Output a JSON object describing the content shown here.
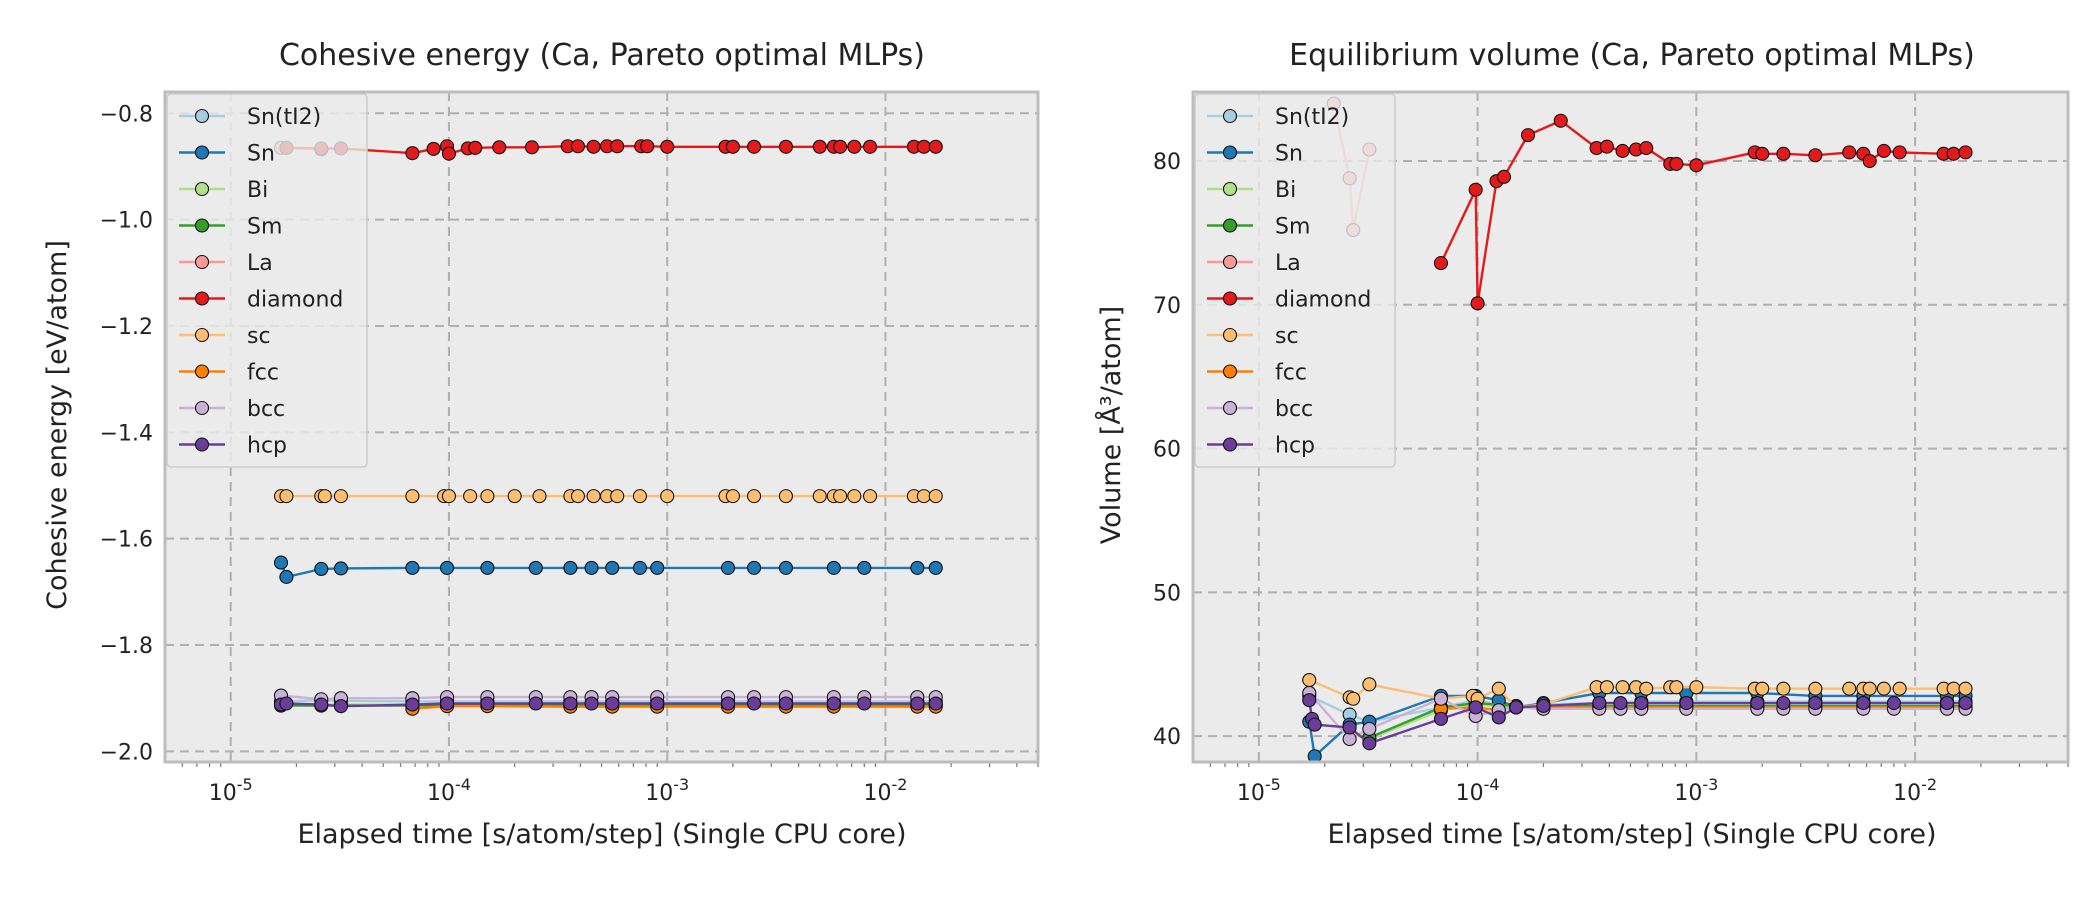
{
  "chart_data": [
    {
      "type": "line",
      "title": "Cohesive energy (Ca, Pareto optimal MLPs)",
      "xlabel": "Elapsed time [s/atom/step] (Single CPU core)",
      "ylabel": "Cohesive energy [eV/atom]",
      "xscale": "log",
      "xlim": [
        5e-06,
        0.05
      ],
      "ylim": [
        -2.02,
        -0.76
      ],
      "xticks": [
        {
          "value": 1e-05,
          "base": "10",
          "exp": "-5"
        },
        {
          "value": 0.0001,
          "base": "10",
          "exp": "-4"
        },
        {
          "value": 0.001,
          "base": "10",
          "exp": "-3"
        },
        {
          "value": 0.01,
          "base": "10",
          "exp": "-2"
        }
      ],
      "yticks": [
        {
          "value": -0.8,
          "label": "−0.8"
        },
        {
          "value": -1.0,
          "label": "−1.0"
        },
        {
          "value": -1.2,
          "label": "−1.2"
        },
        {
          "value": -1.4,
          "label": "−1.4"
        },
        {
          "value": -1.6,
          "label": "−1.6"
        },
        {
          "value": -1.8,
          "label": "−1.8"
        },
        {
          "value": -2.0,
          "label": "−2.0"
        }
      ],
      "grid": true,
      "legend_position": "top-left",
      "series": [
        {
          "name": "Sn(tI2)",
          "color": "#a6cee3",
          "x": [
            1.7e-05,
            2.6e-05,
            3.2e-05,
            6.8e-05,
            9.8e-05,
            0.00015,
            0.00036,
            0.00056,
            0.0009,
            0.0019,
            0.0035,
            0.0058,
            0.014,
            0.017
          ],
          "y": [
            -1.906,
            -1.904,
            -1.905,
            -1.906,
            -1.906,
            -1.906,
            -1.906,
            -1.906,
            -1.906,
            -1.906,
            -1.906,
            -1.906,
            -1.906,
            -1.906
          ]
        },
        {
          "name": "Sn",
          "color": "#1f78b4",
          "x": [
            1.7e-05,
            1.8e-05,
            2.6e-05,
            3.2e-05,
            6.8e-05,
            9.8e-05,
            0.00015,
            0.00025,
            0.00036,
            0.00045,
            0.00056,
            0.00075,
            0.0009,
            0.0019,
            0.0025,
            0.0035,
            0.0058,
            0.008,
            0.014,
            0.017
          ],
          "y": [
            -1.645,
            -1.672,
            -1.657,
            -1.656,
            -1.655,
            -1.655,
            -1.655,
            -1.655,
            -1.655,
            -1.655,
            -1.655,
            -1.655,
            -1.655,
            -1.655,
            -1.655,
            -1.655,
            -1.655,
            -1.655,
            -1.655,
            -1.655
          ]
        },
        {
          "name": "Bi",
          "color": "#b2df8a",
          "x": [
            1.7e-05,
            2.6e-05,
            3.2e-05,
            6.8e-05,
            9.8e-05,
            0.00015,
            0.00036,
            0.00056,
            0.0009,
            0.0019,
            0.0035,
            0.0058,
            0.014,
            0.017
          ],
          "y": [
            -1.912,
            -1.912,
            -1.912,
            -1.912,
            -1.912,
            -1.912,
            -1.912,
            -1.912,
            -1.912,
            -1.912,
            -1.912,
            -1.912,
            -1.912,
            -1.912
          ]
        },
        {
          "name": "Sm",
          "color": "#33a02c",
          "x": [
            1.7e-05,
            2.6e-05,
            3.2e-05,
            6.8e-05,
            9.8e-05,
            0.00015,
            0.00036,
            0.00056,
            0.0009,
            0.0019,
            0.0035,
            0.0058,
            0.014,
            0.017
          ],
          "y": [
            -1.914,
            -1.914,
            -1.914,
            -1.914,
            -1.914,
            -1.914,
            -1.914,
            -1.914,
            -1.914,
            -1.914,
            -1.914,
            -1.914,
            -1.914,
            -1.914
          ]
        },
        {
          "name": "La",
          "color": "#fb9a99",
          "x": [
            1.7e-05,
            2.6e-05,
            3.2e-05
          ],
          "y": [
            -0.865,
            -0.868,
            -0.866
          ]
        },
        {
          "name": "diamond",
          "color": "#e31a1c",
          "x": [
            1.8e-05,
            2.6e-05,
            3.2e-05,
            6.8e-05,
            8.5e-05,
            9.8e-05,
            0.0001,
            0.000122,
            0.000132,
            0.00017,
            0.00024,
            0.00035,
            0.00039,
            0.00046,
            0.00053,
            0.00059,
            0.00076,
            0.00081,
            0.001,
            0.00185,
            0.002,
            0.0025,
            0.0035,
            0.005,
            0.0058,
            0.0062,
            0.0072,
            0.0085,
            0.0135,
            0.015,
            0.017
          ],
          "y": [
            -0.865,
            -0.866,
            -0.866,
            -0.875,
            -0.867,
            -0.862,
            -0.876,
            -0.866,
            -0.865,
            -0.864,
            -0.864,
            -0.862,
            -0.862,
            -0.863,
            -0.862,
            -0.862,
            -0.862,
            -0.862,
            -0.863,
            -0.863,
            -0.863,
            -0.863,
            -0.863,
            -0.863,
            -0.863,
            -0.863,
            -0.863,
            -0.863,
            -0.863,
            -0.863,
            -0.863
          ]
        },
        {
          "name": "sc",
          "color": "#fdbf6f",
          "x": [
            1.7e-05,
            1.8e-05,
            2.6e-05,
            2.7e-05,
            3.2e-05,
            6.8e-05,
            9.5e-05,
            0.0001,
            0.000125,
            0.00015,
            0.0002,
            0.00026,
            0.00036,
            0.00039,
            0.00046,
            0.00053,
            0.00059,
            0.00075,
            0.001,
            0.00185,
            0.002,
            0.0025,
            0.0035,
            0.005,
            0.0058,
            0.0062,
            0.0072,
            0.0085,
            0.0135,
            0.015,
            0.017
          ],
          "y": [
            -1.52,
            -1.52,
            -1.52,
            -1.52,
            -1.52,
            -1.52,
            -1.52,
            -1.52,
            -1.52,
            -1.52,
            -1.52,
            -1.52,
            -1.52,
            -1.52,
            -1.52,
            -1.52,
            -1.52,
            -1.52,
            -1.52,
            -1.52,
            -1.52,
            -1.52,
            -1.52,
            -1.52,
            -1.52,
            -1.52,
            -1.52,
            -1.52,
            -1.52,
            -1.52,
            -1.52
          ]
        },
        {
          "name": "fcc",
          "color": "#ff7f00",
          "x": [
            6.8e-05,
            9.8e-05,
            0.00015,
            0.00036,
            0.00056,
            0.0009,
            0.0019,
            0.0035,
            0.0058,
            0.014,
            0.017
          ],
          "y": [
            -1.92,
            -1.915,
            -1.915,
            -1.916,
            -1.916,
            -1.916,
            -1.916,
            -1.916,
            -1.916,
            -1.916,
            -1.916
          ]
        },
        {
          "name": "bcc",
          "color": "#cab2d6",
          "x": [
            1.7e-05,
            2.6e-05,
            3.2e-05,
            6.8e-05,
            9.8e-05,
            0.00015,
            0.00025,
            0.00036,
            0.00045,
            0.00056,
            0.0009,
            0.0019,
            0.0025,
            0.0035,
            0.0058,
            0.008,
            0.014,
            0.017
          ],
          "y": [
            -1.895,
            -1.902,
            -1.9,
            -1.9,
            -1.898,
            -1.898,
            -1.898,
            -1.898,
            -1.898,
            -1.898,
            -1.898,
            -1.898,
            -1.898,
            -1.898,
            -1.898,
            -1.898,
            -1.898,
            -1.898
          ]
        },
        {
          "name": "hcp",
          "color": "#6a3d9a",
          "x": [
            1.7e-05,
            1.8e-05,
            2.6e-05,
            3.2e-05,
            6.8e-05,
            9.8e-05,
            0.00015,
            0.00025,
            0.00036,
            0.00045,
            0.00056,
            0.0009,
            0.0019,
            0.0025,
            0.0035,
            0.0058,
            0.008,
            0.014,
            0.017
          ],
          "y": [
            -1.912,
            -1.91,
            -1.912,
            -1.915,
            -1.912,
            -1.91,
            -1.91,
            -1.91,
            -1.91,
            -1.91,
            -1.91,
            -1.91,
            -1.91,
            -1.91,
            -1.91,
            -1.91,
            -1.91,
            -1.91,
            -1.91
          ]
        }
      ]
    },
    {
      "type": "line",
      "title": "Equilibrium volume (Ca, Pareto optimal MLPs)",
      "xlabel": "Elapsed time [s/atom/step] (Single CPU core)",
      "ylabel": "Volume [Å³/atom]",
      "xscale": "log",
      "xlim": [
        5e-06,
        0.05
      ],
      "ylim": [
        38.2,
        84.8
      ],
      "xticks": [
        {
          "value": 1e-05,
          "base": "10",
          "exp": "-5"
        },
        {
          "value": 0.0001,
          "base": "10",
          "exp": "-4"
        },
        {
          "value": 0.001,
          "base": "10",
          "exp": "-3"
        },
        {
          "value": 0.01,
          "base": "10",
          "exp": "-2"
        }
      ],
      "yticks": [
        {
          "value": 40,
          "label": "40"
        },
        {
          "value": 50,
          "label": "50"
        },
        {
          "value": 60,
          "label": "60"
        },
        {
          "value": 70,
          "label": "70"
        },
        {
          "value": 80,
          "label": "80"
        }
      ],
      "grid": true,
      "legend_position": "top-left",
      "series": [
        {
          "name": "Sn(tI2)",
          "color": "#a6cee3",
          "x": [
            1.7e-05,
            2.6e-05,
            3.2e-05,
            6.8e-05,
            9.8e-05,
            0.000125,
            0.00015,
            0.0002,
            0.00036,
            0.00056,
            0.0009,
            0.0019,
            0.0035,
            0.0058,
            0.014,
            0.017
          ],
          "y": [
            42.8,
            41.5,
            41.0,
            42.0,
            42.5,
            42.2,
            42.0,
            42.2,
            42.3,
            42.4,
            42.4,
            42.4,
            42.4,
            42.4,
            42.4,
            42.4
          ]
        },
        {
          "name": "Sn",
          "color": "#1f78b4",
          "x": [
            1.7e-05,
            1.8e-05,
            2.6e-05,
            3.2e-05,
            6.8e-05,
            9.8e-05,
            0.000125,
            0.00015,
            0.0002,
            0.00036,
            0.00056,
            0.0009,
            0.0019,
            0.0035,
            0.0058,
            0.014,
            0.017
          ],
          "y": [
            41.0,
            38.6,
            40.8,
            41.0,
            42.8,
            42.8,
            42.5,
            42.0,
            42.3,
            43.0,
            43.0,
            43.0,
            43.0,
            42.8,
            42.8,
            42.8,
            42.8
          ]
        },
        {
          "name": "Bi",
          "color": "#b2df8a",
          "x": [
            3.2e-05,
            6.8e-05,
            9.8e-05,
            0.00015,
            0.00036,
            0.00056,
            0.0009,
            0.0019,
            0.0035,
            0.0058,
            0.014,
            0.017
          ],
          "y": [
            39.8,
            41.8,
            42.2,
            42.0,
            42.0,
            42.0,
            42.0,
            42.0,
            42.0,
            42.0,
            42.0,
            42.0
          ]
        },
        {
          "name": "Sm",
          "color": "#33a02c",
          "x": [
            3.2e-05,
            6.8e-05,
            9.8e-05,
            0.00015,
            0.00036,
            0.00056,
            0.0009,
            0.0019,
            0.0035,
            0.0058,
            0.014,
            0.017
          ],
          "y": [
            39.9,
            42.0,
            42.3,
            42.1,
            42.1,
            42.1,
            42.1,
            42.1,
            42.1,
            42.1,
            42.1,
            42.1
          ]
        },
        {
          "name": "La",
          "color": "#fb9a99",
          "x": [
            2.2e-05,
            2.6e-05,
            2.7e-05,
            3.2e-05
          ],
          "y": [
            84.0,
            78.8,
            75.2,
            80.8
          ]
        },
        {
          "name": "diamond",
          "color": "#e31a1c",
          "x": [
            6.8e-05,
            9.8e-05,
            0.0001,
            0.000122,
            0.000132,
            0.00017,
            0.00024,
            0.00035,
            0.00039,
            0.00046,
            0.00053,
            0.00059,
            0.00076,
            0.00081,
            0.001,
            0.00185,
            0.002,
            0.0025,
            0.0035,
            0.005,
            0.0058,
            0.0062,
            0.0072,
            0.0085,
            0.0135,
            0.015,
            0.017
          ],
          "y": [
            72.9,
            78.0,
            70.1,
            78.6,
            78.9,
            81.8,
            82.8,
            80.9,
            81.0,
            80.7,
            80.8,
            80.9,
            79.8,
            79.8,
            79.7,
            80.6,
            80.5,
            80.5,
            80.4,
            80.6,
            80.5,
            80.0,
            80.7,
            80.6,
            80.5,
            80.5,
            80.6
          ]
        },
        {
          "name": "sc",
          "color": "#fdbf6f",
          "x": [
            1.7e-05,
            2.6e-05,
            2.7e-05,
            3.2e-05,
            6.8e-05,
            9.5e-05,
            0.0001,
            0.000125,
            0.00015,
            0.0002,
            0.00035,
            0.00039,
            0.00046,
            0.00053,
            0.00059,
            0.00076,
            0.00081,
            0.001,
            0.00185,
            0.002,
            0.0025,
            0.0035,
            0.005,
            0.0058,
            0.0062,
            0.0072,
            0.0085,
            0.0135,
            0.015,
            0.017
          ],
          "y": [
            43.9,
            42.7,
            42.6,
            43.6,
            42.6,
            42.8,
            42.6,
            43.3,
            42.0,
            42.2,
            43.4,
            43.4,
            43.4,
            43.4,
            43.3,
            43.4,
            43.4,
            43.4,
            43.3,
            43.3,
            43.3,
            43.3,
            43.3,
            43.3,
            43.3,
            43.3,
            43.3,
            43.3,
            43.3,
            43.3
          ]
        },
        {
          "name": "fcc",
          "color": "#ff7f00",
          "x": [
            6.8e-05,
            9.8e-05,
            0.000125,
            0.00015,
            0.0002,
            0.00036,
            0.00056,
            0.0009,
            0.0019,
            0.0035,
            0.0058,
            0.014,
            0.017
          ],
          "y": [
            41.9,
            42.0,
            41.8,
            42.0,
            42.0,
            42.0,
            42.0,
            42.0,
            42.0,
            42.0,
            42.0,
            42.0,
            42.0
          ]
        },
        {
          "name": "bcc",
          "color": "#cab2d6",
          "x": [
            1.7e-05,
            2.6e-05,
            3.2e-05,
            6.8e-05,
            9.8e-05,
            0.000125,
            0.00015,
            0.0002,
            0.00036,
            0.00045,
            0.00056,
            0.0009,
            0.0019,
            0.0025,
            0.0035,
            0.0058,
            0.008,
            0.014,
            0.017
          ],
          "y": [
            43.0,
            39.8,
            40.5,
            42.6,
            41.4,
            41.8,
            42.0,
            41.9,
            41.9,
            41.9,
            41.9,
            41.9,
            41.9,
            41.9,
            41.9,
            41.9,
            41.9,
            41.9,
            41.9
          ]
        },
        {
          "name": "hcp",
          "color": "#6a3d9a",
          "x": [
            1.7e-05,
            1.75e-05,
            1.8e-05,
            2.6e-05,
            3.2e-05,
            6.8e-05,
            9.8e-05,
            0.000125,
            0.00015,
            0.0002,
            0.00036,
            0.00045,
            0.00056,
            0.0009,
            0.0019,
            0.0025,
            0.0035,
            0.0058,
            0.008,
            0.014,
            0.017
          ],
          "y": [
            42.5,
            41.2,
            40.8,
            40.6,
            39.5,
            41.2,
            42.0,
            41.3,
            42.0,
            42.1,
            42.3,
            42.3,
            42.3,
            42.3,
            42.3,
            42.3,
            42.3,
            42.3,
            42.3,
            42.3,
            42.3
          ]
        }
      ]
    }
  ]
}
